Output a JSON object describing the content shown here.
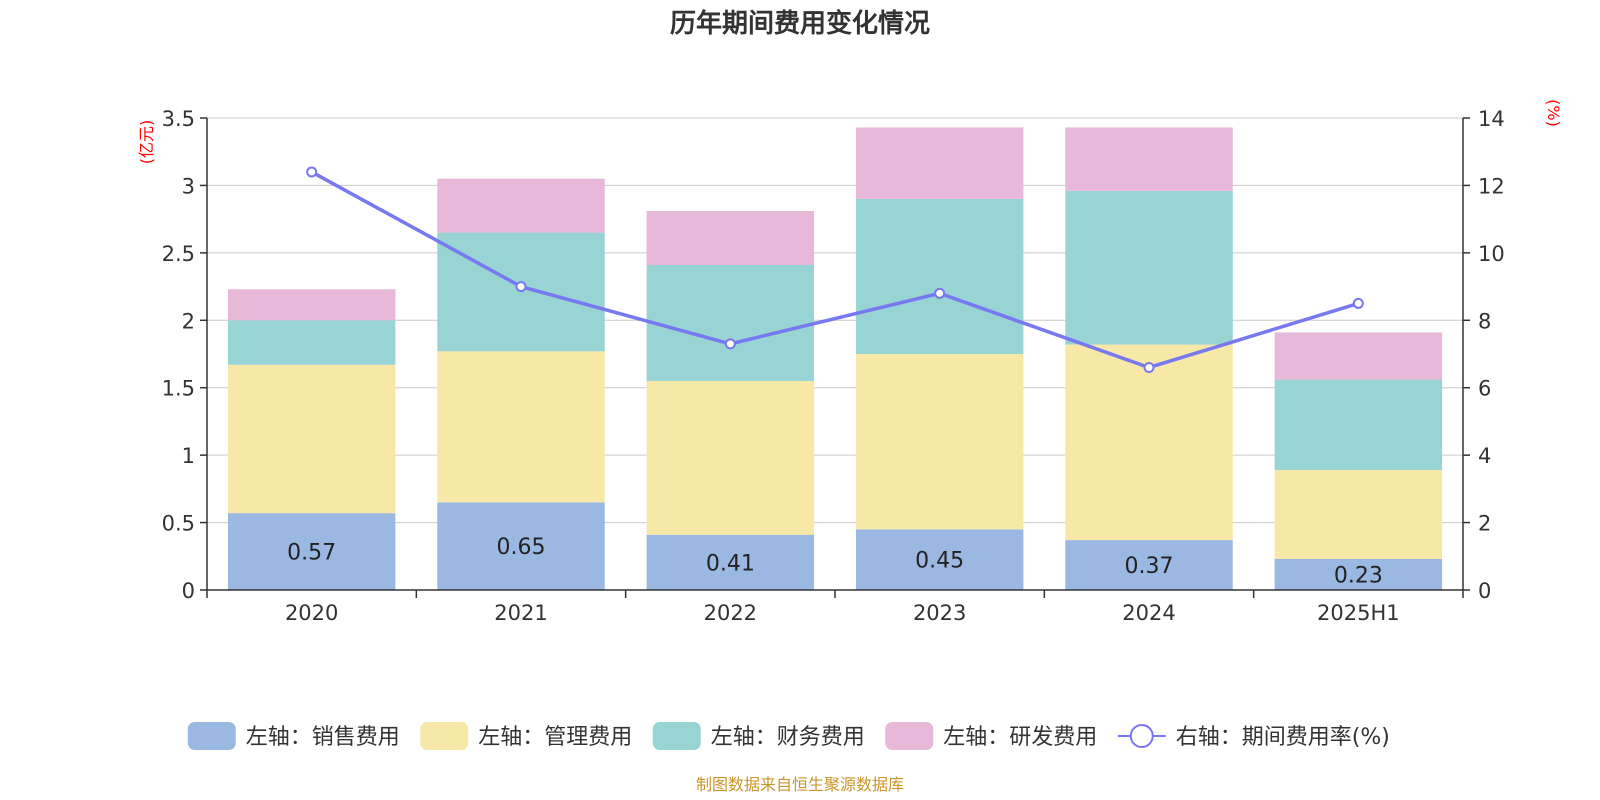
{
  "chart_data": {
    "type": "bar",
    "stacked": true,
    "title": "历年期间费用变化情况",
    "categories": [
      "2020",
      "2021",
      "2022",
      "2023",
      "2024",
      "2025H1"
    ],
    "y_left": {
      "unit": "(亿元)",
      "range": [
        0,
        3.5
      ],
      "ticks": [
        "0",
        "0.5",
        "1",
        "1.5",
        "2",
        "2.5",
        "3",
        "3.5"
      ]
    },
    "y_right": {
      "unit": "(%)",
      "range": [
        0,
        14
      ],
      "ticks": [
        "0",
        "2",
        "4",
        "6",
        "8",
        "10",
        "12",
        "14"
      ]
    },
    "grid": true,
    "legend_position": "bottom",
    "series": [
      {
        "name": "左轴：销售费用",
        "axis": "left",
        "color": "#9bb8e2",
        "values": [
          0.57,
          0.65,
          0.41,
          0.45,
          0.37,
          0.23
        ],
        "labels": [
          "0.57",
          "0.65",
          "0.41",
          "0.45",
          "0.37",
          "0.23"
        ]
      },
      {
        "name": "左轴：管理费用",
        "axis": "left",
        "color": "#f8e8a8",
        "values": [
          1.1,
          1.12,
          1.14,
          1.3,
          1.45,
          0.66
        ]
      },
      {
        "name": "左轴：财务费用",
        "axis": "left",
        "color": "#98d4d4",
        "values": [
          0.33,
          0.88,
          0.86,
          1.15,
          1.14,
          0.67
        ]
      },
      {
        "name": "左轴：研发费用",
        "axis": "left",
        "color": "#e8b8d8",
        "values": [
          0.23,
          0.4,
          0.4,
          0.53,
          0.47,
          0.35
        ]
      },
      {
        "name": "右轴：期间费用率(%)",
        "axis": "right",
        "type": "line",
        "color": "#7878f0",
        "values": [
          12.4,
          9.0,
          7.3,
          8.8,
          6.6,
          8.5
        ]
      }
    ],
    "source": "制图数据来自恒生聚源数据库"
  }
}
